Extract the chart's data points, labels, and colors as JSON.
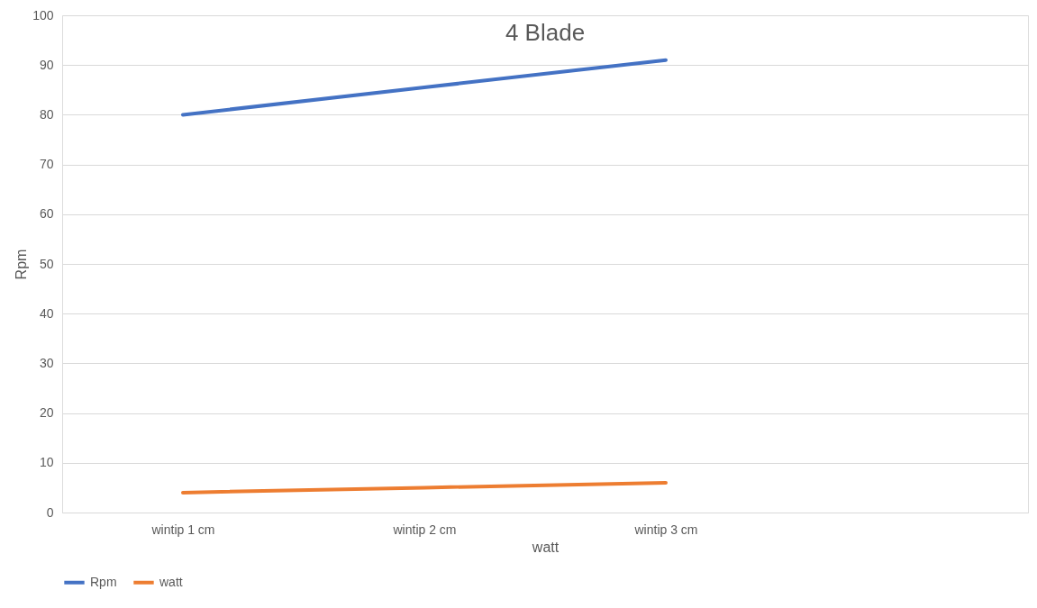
{
  "chart_data": {
    "type": "line",
    "title": "4 Blade",
    "xlabel": "watt",
    "ylabel": "Rpm",
    "categories": [
      "wintip 1 cm",
      "wintip 2 cm",
      "wintip 3 cm",
      null
    ],
    "series": [
      {
        "name": "Rpm",
        "color": "#4472c4",
        "values": [
          80,
          85.5,
          91,
          null
        ]
      },
      {
        "name": "watt",
        "color": "#ed7d31",
        "values": [
          4,
          5,
          6,
          null
        ]
      }
    ],
    "ylim": [
      0,
      100
    ],
    "yticks": [
      0,
      10,
      20,
      30,
      40,
      50,
      60,
      70,
      80,
      90,
      100
    ],
    "grid": "y",
    "legend": "bottom",
    "marker": "none",
    "line_style": "solid"
  }
}
